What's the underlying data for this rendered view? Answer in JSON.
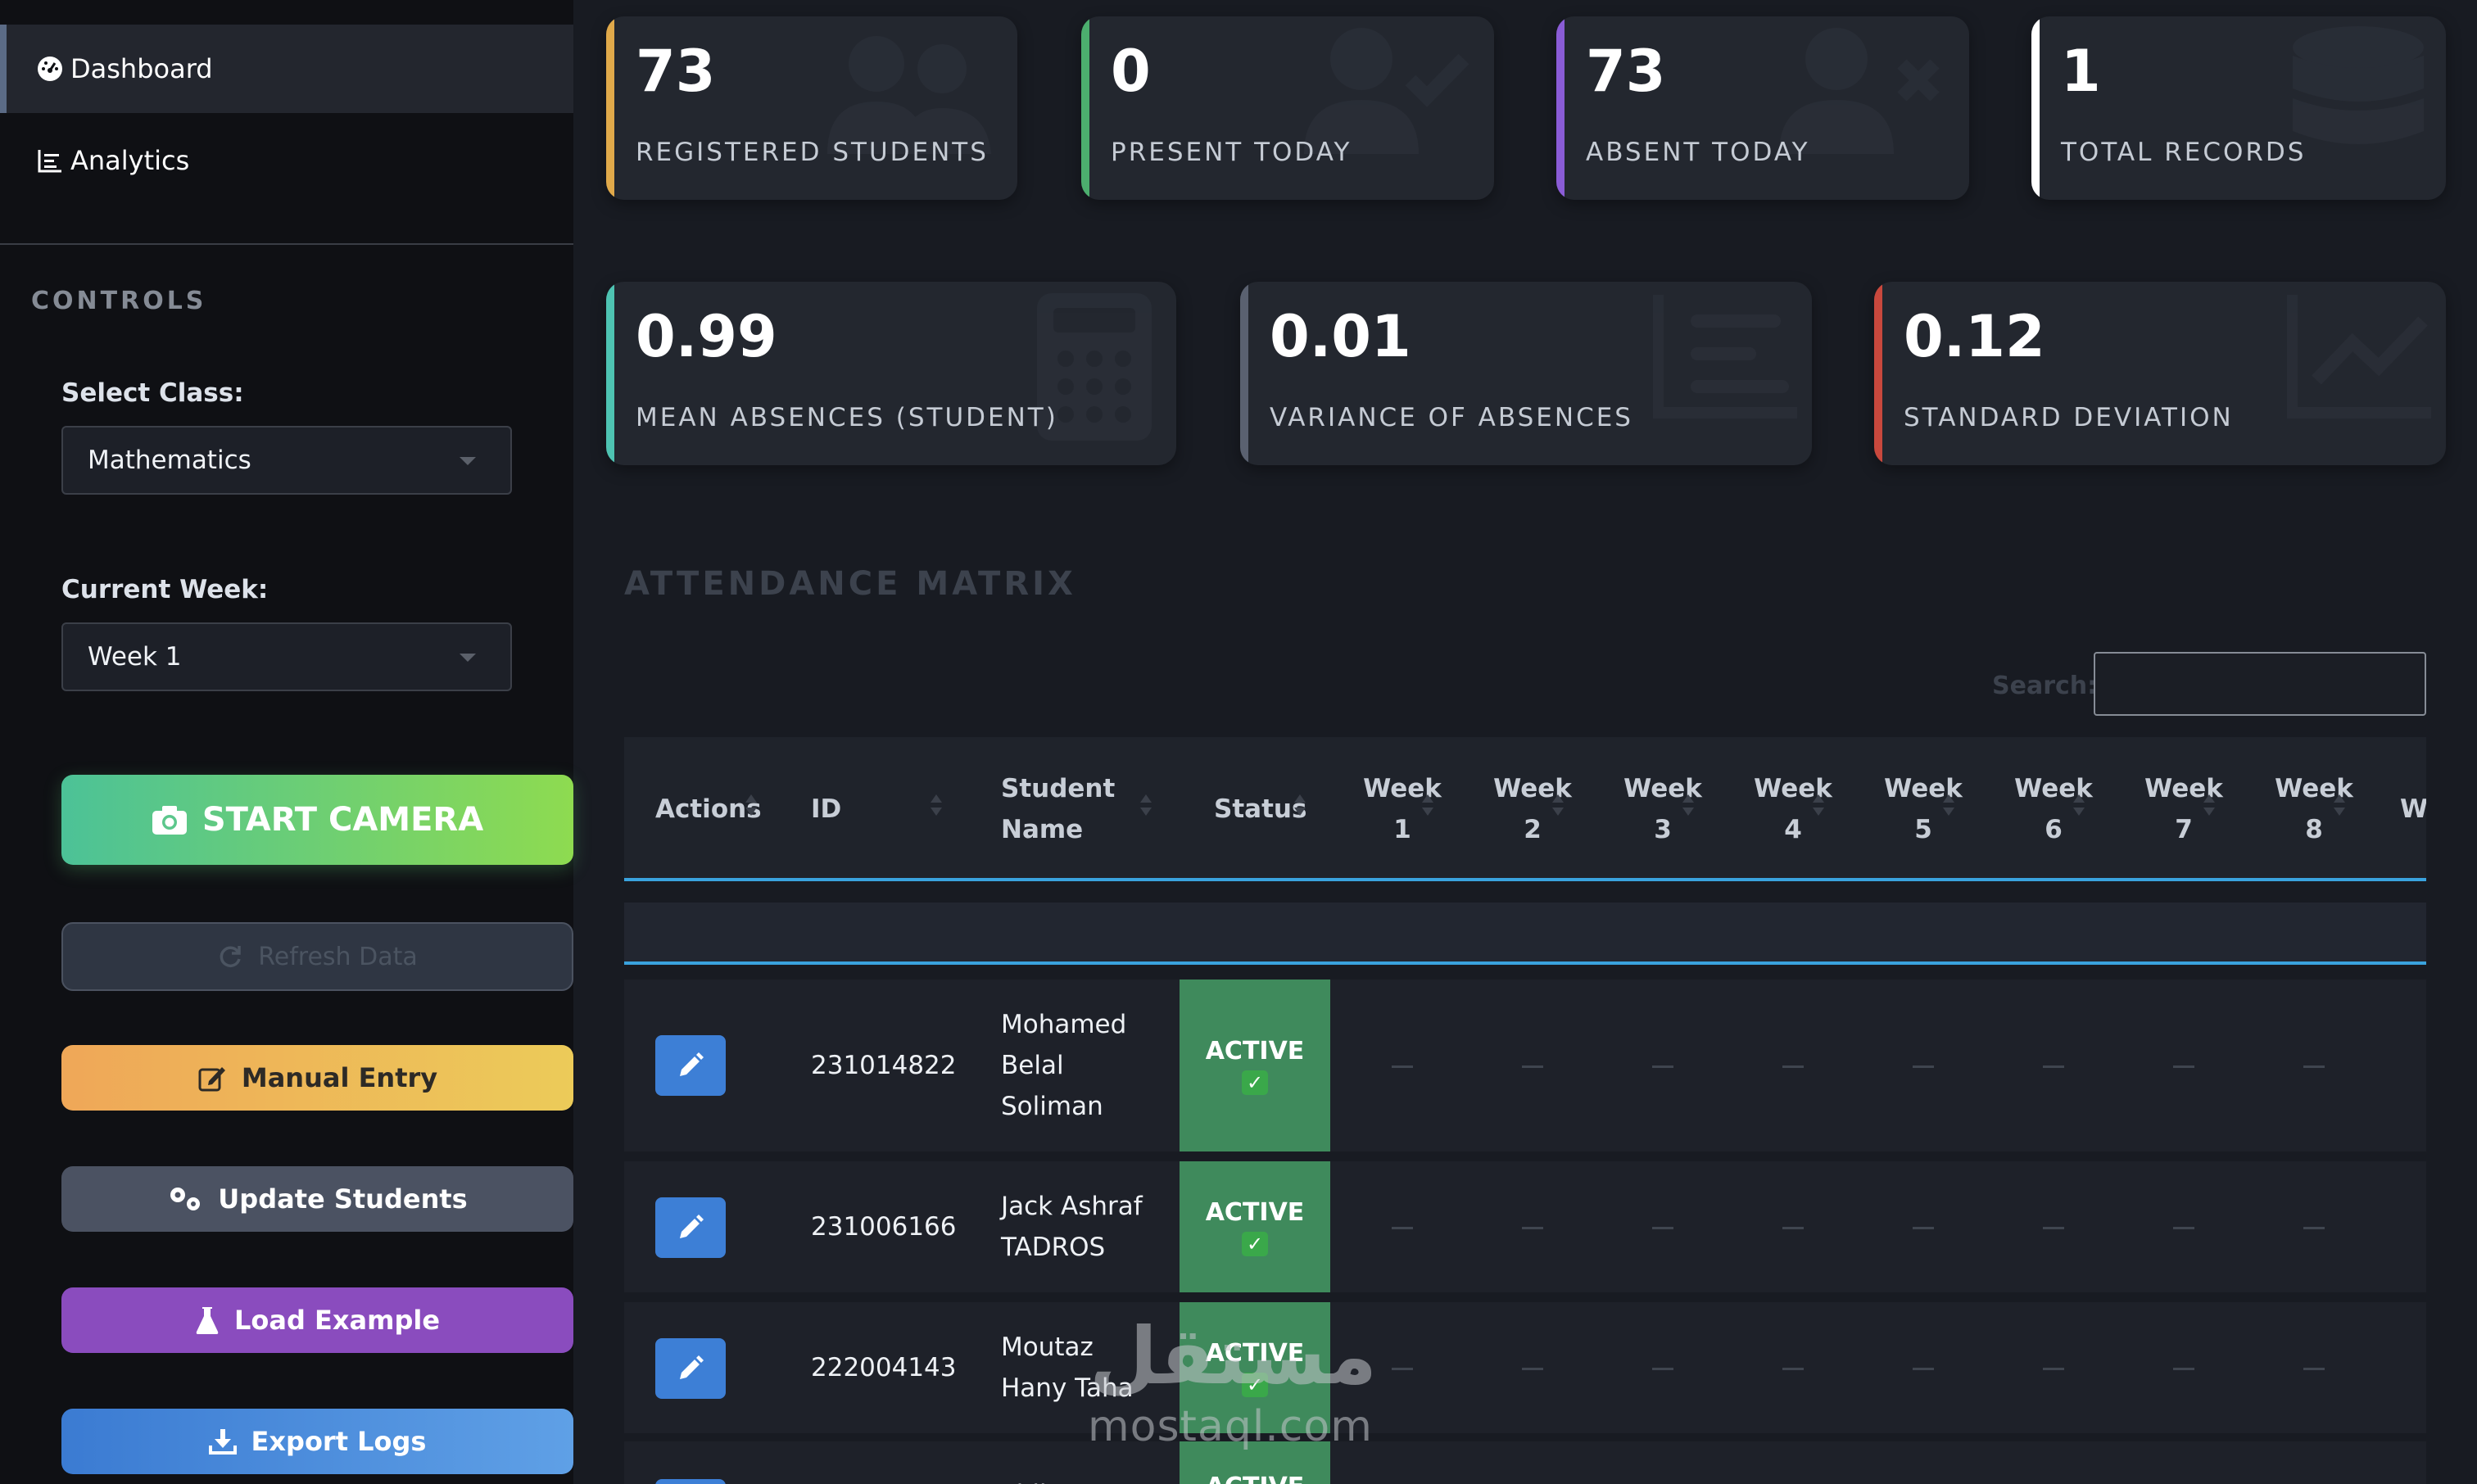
{
  "sidebar": {
    "nav": [
      {
        "label": "Dashboard",
        "icon": "dashboard-icon",
        "active": true
      },
      {
        "label": "Analytics",
        "icon": "chart-icon",
        "active": false
      }
    ],
    "controls_title": "CONTROLS",
    "class_label": "Select Class:",
    "class_value": "Mathematics",
    "week_label": "Current Week:",
    "week_value": "Week 1",
    "buttons": {
      "start_camera": "START CAMERA",
      "refresh": "Refresh Data",
      "manual_entry": "Manual Entry",
      "update_students": "Update Students",
      "load_example": "Load Example",
      "export_logs": "Export Logs"
    }
  },
  "stats": [
    {
      "value": "73",
      "label": "REGISTERED STUDENTS",
      "accent": "#e0a94a",
      "icon": "users-icon"
    },
    {
      "value": "0",
      "label": "PRESENT TODAY",
      "accent": "#4cae6e",
      "icon": "user-check-icon"
    },
    {
      "value": "73",
      "label": "ABSENT TODAY",
      "accent": "#8a5cd6",
      "icon": "user-x-icon"
    },
    {
      "value": "1",
      "label": "TOTAL RECORDS",
      "accent": "#ffffff",
      "icon": "database-icon"
    }
  ],
  "metrics": [
    {
      "value": "0.99",
      "label": "MEAN ABSENCES (STUDENT)",
      "accent": "#4ec3b2",
      "icon": "calculator-icon"
    },
    {
      "value": "0.01",
      "label": "VARIANCE OF ABSENCES",
      "accent": "#5a6170",
      "icon": "list-icon"
    },
    {
      "value": "0.12",
      "label": "STANDARD DEVIATION",
      "accent": "#c9483d",
      "icon": "chart-line-icon"
    }
  ],
  "matrix": {
    "title": "ATTENDANCE MATRIX",
    "search_label": "Search:",
    "columns": [
      "Actions",
      "ID",
      "Student Name",
      "Status",
      "Week 1",
      "Week 2",
      "Week 3",
      "Week 4",
      "Week 5",
      "Week 6",
      "Week 7",
      "Week 8",
      "W"
    ],
    "rows": [
      {
        "id": "231014822",
        "name": "Mohamed Belal Soliman",
        "status": "ACTIVE",
        "weeks": [
          "–",
          "–",
          "–",
          "–",
          "–",
          "–",
          "–",
          "–"
        ]
      },
      {
        "id": "231006166",
        "name": "Jack Ashraf TADROS",
        "status": "ACTIVE",
        "weeks": [
          "–",
          "–",
          "–",
          "–",
          "–",
          "–",
          "–",
          "–"
        ]
      },
      {
        "id": "222004143",
        "name": "Moutaz Hany Taha",
        "status": "ACTIVE",
        "weeks": [
          "–",
          "–",
          "–",
          "–",
          "–",
          "–",
          "–",
          "–"
        ]
      },
      {
        "id": "",
        "name": "Philopateer",
        "status": "ACTIVE",
        "weeks": []
      }
    ]
  },
  "watermark": {
    "logo": "مستقل",
    "url": "mostaql.com"
  }
}
